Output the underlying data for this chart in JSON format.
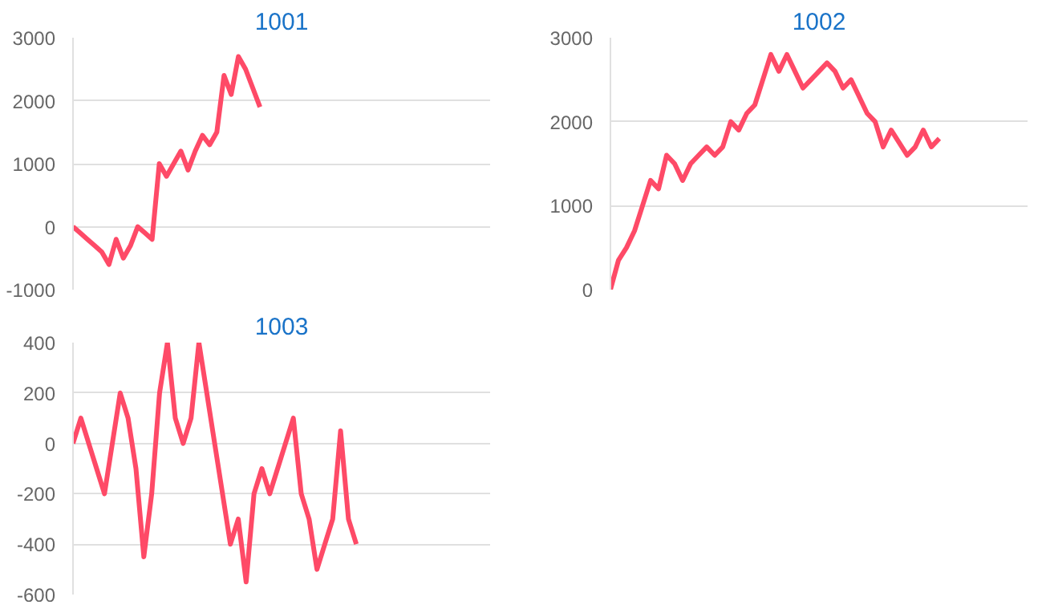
{
  "chart_data": [
    {
      "type": "line",
      "title": "1001",
      "categories": [
        null,
        null,
        null,
        null,
        null,
        null,
        null,
        null,
        null,
        null,
        null,
        null,
        null,
        null,
        null,
        null,
        null,
        null,
        null,
        null,
        null,
        null,
        null,
        null,
        null,
        null,
        null,
        null,
        null,
        null,
        null,
        null,
        null,
        null,
        null,
        null,
        null,
        null,
        null,
        null,
        null,
        null,
        null,
        null,
        null,
        null,
        null,
        null,
        null,
        null,
        null,
        null,
        null,
        null,
        null,
        null,
        null,
        null,
        null
      ],
      "series": [
        {
          "color": "#fe4a67",
          "values": [
            0,
            -100,
            -200,
            -300,
            -400,
            -600,
            -200,
            -500,
            -300,
            0,
            -100,
            -200,
            1000,
            800,
            1000,
            1200,
            900,
            1200,
            1450,
            1300,
            1500,
            2400,
            2100,
            2700,
            2500,
            2200,
            1900,
            null,
            null,
            null,
            null,
            null,
            null,
            null,
            null,
            null,
            null,
            null,
            null,
            null,
            null,
            null,
            null,
            null,
            null,
            null,
            null,
            null,
            null,
            null,
            null,
            null,
            null,
            null,
            null,
            null,
            null,
            null,
            null
          ]
        }
      ],
      "ylim": [
        -1000,
        3000
      ],
      "yticks": [
        -1000,
        0,
        1000,
        2000,
        3000
      ],
      "grid": "y",
      "tick_labels": "y",
      "marker": "none",
      "line_style": "solid"
    },
    {
      "type": "line",
      "title": "1002",
      "categories": [
        null,
        null,
        null,
        null,
        null,
        null,
        null,
        null,
        null,
        null,
        null,
        null,
        null,
        null,
        null,
        null,
        null,
        null,
        null,
        null,
        null,
        null,
        null,
        null,
        null,
        null,
        null,
        null,
        null,
        null,
        null,
        null,
        null,
        null,
        null,
        null,
        null,
        null,
        null,
        null,
        null,
        null,
        null,
        null,
        null,
        null,
        null,
        null,
        null,
        null,
        null,
        null,
        null
      ],
      "series": [
        {
          "color": "#fe4a67",
          "values": [
            0,
            350,
            500,
            700,
            1000,
            1300,
            1200,
            1600,
            1500,
            1300,
            1500,
            1600,
            1700,
            1600,
            1700,
            2000,
            1900,
            2100,
            2200,
            2500,
            2800,
            2600,
            2800,
            2600,
            2400,
            2500,
            2600,
            2700,
            2600,
            2400,
            2500,
            2300,
            2100,
            2000,
            1700,
            1900,
            1750,
            1600,
            1700,
            1900,
            1700,
            1800,
            null,
            null,
            null,
            null,
            null,
            null,
            null,
            null,
            null,
            null,
            null
          ]
        }
      ],
      "ylim": [
        0,
        3000
      ],
      "yticks": [
        0,
        1000,
        2000,
        3000
      ],
      "grid": "y",
      "tick_labels": "y",
      "marker": "none",
      "line_style": "solid"
    },
    {
      "type": "line",
      "title": "1003",
      "categories": [
        null,
        null,
        null,
        null,
        null,
        null,
        null,
        null,
        null,
        null,
        null,
        null,
        null,
        null,
        null,
        null,
        null,
        null,
        null,
        null,
        null,
        null,
        null,
        null,
        null,
        null,
        null,
        null,
        null,
        null,
        null,
        null,
        null,
        null,
        null,
        null,
        null,
        null,
        null,
        null,
        null,
        null,
        null,
        null,
        null,
        null,
        null,
        null,
        null,
        null,
        null,
        null,
        null,
        null
      ],
      "series": [
        {
          "color": "#fe4a67",
          "values": [
            0,
            100,
            0,
            -100,
            -200,
            0,
            200,
            100,
            -100,
            -450,
            -200,
            200,
            400,
            100,
            0,
            100,
            400,
            200,
            0,
            -200,
            -400,
            -300,
            -550,
            -200,
            -100,
            -200,
            -100,
            0,
            100,
            -200,
            -300,
            -500,
            -400,
            -300,
            50,
            -300,
            -400,
            null,
            null,
            null,
            null,
            null,
            null,
            null,
            null,
            null,
            null,
            null,
            null,
            null,
            null,
            null,
            null,
            null
          ]
        }
      ],
      "ylim": [
        -600,
        400
      ],
      "yticks": [
        -600,
        -400,
        -200,
        0,
        200,
        400
      ],
      "grid": "y",
      "tick_labels": "y",
      "marker": "none",
      "line_style": "solid"
    }
  ]
}
